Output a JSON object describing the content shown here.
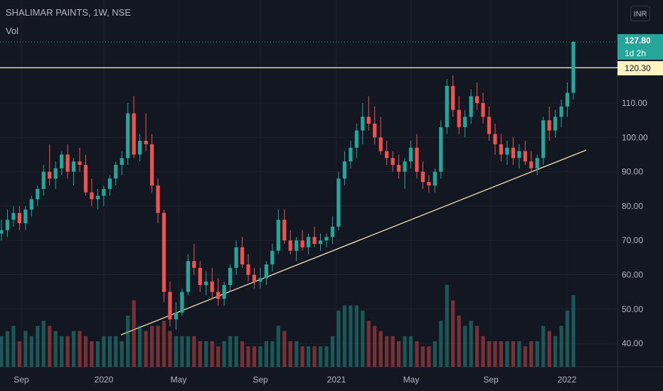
{
  "chart_data": {
    "type": "candlestick",
    "title": "SHALIMAR PAINTS, 1W, NSE",
    "volume_label": "Vol",
    "currency": "INR",
    "y_ticks": [
      "120.00",
      "110.00",
      "100.00",
      "90.00",
      "80.00",
      "70.00",
      "60.00",
      "50.00",
      "40.00"
    ],
    "x_ticks": [
      "Sep",
      "2020",
      "May",
      "Sep",
      "2021",
      "May",
      "Sep",
      "2022"
    ],
    "last_price": "127.80",
    "countdown": "1d 2h",
    "horizontal_level": "120.30",
    "colors": {
      "up": "#26a69a",
      "down": "#ef5350",
      "bg": "#131722",
      "grid": "#1e222d",
      "text": "#b2b5be",
      "level": "#fff3c2"
    },
    "candles": [
      [
        72,
        76,
        70,
        73,
        6
      ],
      [
        73,
        79,
        71,
        76,
        7
      ],
      [
        76,
        80,
        74,
        78,
        8
      ],
      [
        78,
        80,
        73,
        75,
        5
      ],
      [
        75,
        80,
        73,
        79,
        7
      ],
      [
        79,
        83,
        77,
        82,
        6
      ],
      [
        82,
        86,
        80,
        85,
        8
      ],
      [
        85,
        92,
        83,
        90,
        9
      ],
      [
        90,
        98,
        86,
        88,
        8
      ],
      [
        88,
        93,
        85,
        91,
        7
      ],
      [
        91,
        96,
        89,
        95,
        6
      ],
      [
        95,
        98,
        88,
        90,
        6
      ],
      [
        90,
        94,
        86,
        93,
        7
      ],
      [
        93,
        97,
        90,
        92,
        7
      ],
      [
        92,
        95,
        83,
        84,
        6
      ],
      [
        84,
        88,
        80,
        82,
        5
      ],
      [
        82,
        85,
        79,
        83,
        5
      ],
      [
        83,
        86,
        80,
        85,
        6
      ],
      [
        85,
        89,
        83,
        88,
        6
      ],
      [
        88,
        93,
        86,
        92,
        6
      ],
      [
        92,
        96,
        89,
        94,
        5
      ],
      [
        94,
        110,
        92,
        107,
        10
      ],
      [
        107,
        112,
        94,
        95,
        13
      ],
      [
        95,
        101,
        93,
        99,
        8
      ],
      [
        99,
        107,
        96,
        98,
        7
      ],
      [
        98,
        101,
        84,
        86,
        8
      ],
      [
        86,
        88,
        75,
        78,
        8
      ],
      [
        78,
        79,
        52,
        55,
        9
      ],
      [
        55,
        58,
        45,
        47,
        7
      ],
      [
        47,
        52,
        44,
        49,
        6
      ],
      [
        49,
        56,
        48,
        55,
        6
      ],
      [
        55,
        66,
        54,
        64,
        6
      ],
      [
        64,
        69,
        60,
        62,
        6
      ],
      [
        62,
        64,
        55,
        57,
        5
      ],
      [
        57,
        61,
        54,
        58,
        5
      ],
      [
        58,
        62,
        53,
        55,
        5
      ],
      [
        55,
        59,
        51,
        53,
        4
      ],
      [
        53,
        58,
        51,
        57,
        5
      ],
      [
        57,
        63,
        55,
        62,
        6
      ],
      [
        62,
        70,
        60,
        68,
        6
      ],
      [
        68,
        71,
        62,
        63,
        5
      ],
      [
        63,
        66,
        58,
        60,
        4
      ],
      [
        60,
        62,
        56,
        58,
        4
      ],
      [
        58,
        62,
        56,
        59,
        4
      ],
      [
        59,
        64,
        57,
        63,
        5
      ],
      [
        63,
        69,
        61,
        67,
        5
      ],
      [
        67,
        79,
        66,
        76,
        8
      ],
      [
        76,
        79,
        69,
        70,
        7
      ],
      [
        70,
        73,
        66,
        67,
        5
      ],
      [
        67,
        71,
        64,
        70,
        5
      ],
      [
        70,
        73,
        67,
        68,
        4
      ],
      [
        68,
        72,
        66,
        71,
        4
      ],
      [
        71,
        74,
        68,
        69,
        4
      ],
      [
        69,
        72,
        67,
        70,
        4
      ],
      [
        70,
        72,
        68,
        71,
        4
      ],
      [
        71,
        77,
        69,
        74,
        6
      ],
      [
        74,
        90,
        73,
        88,
        11
      ],
      [
        88,
        96,
        86,
        93,
        12
      ],
      [
        93,
        99,
        91,
        97,
        12
      ],
      [
        97,
        104,
        94,
        102,
        12
      ],
      [
        102,
        110,
        98,
        106,
        11
      ],
      [
        106,
        112,
        102,
        104,
        9
      ],
      [
        104,
        109,
        98,
        100,
        8
      ],
      [
        100,
        106,
        95,
        96,
        7
      ],
      [
        96,
        99,
        92,
        94,
        6
      ],
      [
        94,
        96,
        90,
        92,
        6
      ],
      [
        92,
        95,
        88,
        90,
        5
      ],
      [
        90,
        94,
        85,
        93,
        6
      ],
      [
        93,
        99,
        91,
        97,
        6
      ],
      [
        97,
        101,
        88,
        90,
        5
      ],
      [
        90,
        93,
        85,
        87,
        4
      ],
      [
        87,
        89,
        84,
        86,
        4
      ],
      [
        86,
        91,
        84,
        90,
        5
      ],
      [
        90,
        105,
        88,
        103,
        9
      ],
      [
        103,
        117,
        101,
        115,
        16
      ],
      [
        115,
        118,
        106,
        108,
        13
      ],
      [
        108,
        112,
        101,
        103,
        10
      ],
      [
        103,
        108,
        100,
        106,
        8
      ],
      [
        106,
        114,
        104,
        112,
        9
      ],
      [
        112,
        116,
        108,
        110,
        8
      ],
      [
        110,
        113,
        104,
        106,
        6
      ],
      [
        106,
        109,
        99,
        101,
        5
      ],
      [
        101,
        104,
        95,
        98,
        5
      ],
      [
        98,
        101,
        93,
        95,
        5
      ],
      [
        95,
        99,
        92,
        97,
        5
      ],
      [
        97,
        100,
        92,
        94,
        5
      ],
      [
        94,
        98,
        91,
        96,
        5
      ],
      [
        96,
        99,
        92,
        93,
        4
      ],
      [
        93,
        96,
        90,
        91,
        5
      ],
      [
        91,
        95,
        89,
        94,
        5
      ],
      [
        94,
        106,
        92,
        105,
        8
      ],
      [
        105,
        109,
        99,
        102,
        7
      ],
      [
        102,
        108,
        100,
        106,
        6
      ],
      [
        106,
        111,
        103,
        109,
        8
      ],
      [
        109,
        116,
        106,
        113,
        11
      ],
      [
        113,
        128,
        111,
        127.8,
        14
      ]
    ]
  }
}
